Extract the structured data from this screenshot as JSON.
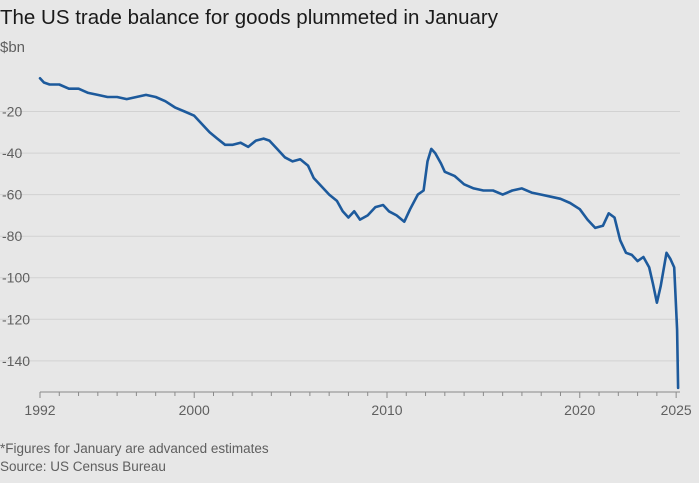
{
  "title": "The US trade balance for goods plummeted in January",
  "unit_label": "$bn",
  "footnote": "*Figures for January are advanced estimates",
  "source": "Source: US Census Bureau",
  "colors": {
    "line": "#1d5a9c",
    "background": "#e7e7e7",
    "grid": "#d2d2d2",
    "axis": "#8a8a8a"
  },
  "chart_data": {
    "type": "line",
    "title": "The US trade balance for goods plummeted in January",
    "ylabel": "$bn",
    "xlabel": "",
    "ylim": [
      -155,
      0
    ],
    "xlim": [
      1992,
      2025.2
    ],
    "y_ticks": [
      -20,
      -40,
      -60,
      -80,
      -100,
      -120,
      -140
    ],
    "x_ticks": [
      1992,
      2000,
      2010,
      2020,
      2025
    ],
    "x_minor_ticks": "yearly",
    "grid": true,
    "series": [
      {
        "values": [
          [
            1992.0,
            -4
          ],
          [
            1992.2,
            -6
          ],
          [
            1992.5,
            -7
          ],
          [
            1993.0,
            -7
          ],
          [
            1993.5,
            -9
          ],
          [
            1994.0,
            -9
          ],
          [
            1994.5,
            -11
          ],
          [
            1995.0,
            -12
          ],
          [
            1995.5,
            -13
          ],
          [
            1996.0,
            -13
          ],
          [
            1996.5,
            -14
          ],
          [
            1997.0,
            -13
          ],
          [
            1997.5,
            -12
          ],
          [
            1998.0,
            -13
          ],
          [
            1998.5,
            -15
          ],
          [
            1999.0,
            -18
          ],
          [
            1999.5,
            -20
          ],
          [
            2000.0,
            -22
          ],
          [
            2000.4,
            -26
          ],
          [
            2000.8,
            -30
          ],
          [
            2001.2,
            -33
          ],
          [
            2001.6,
            -36
          ],
          [
            2002.0,
            -36
          ],
          [
            2002.4,
            -35
          ],
          [
            2002.8,
            -37
          ],
          [
            2003.2,
            -34
          ],
          [
            2003.6,
            -33
          ],
          [
            2003.9,
            -34
          ],
          [
            2004.3,
            -38
          ],
          [
            2004.7,
            -42
          ],
          [
            2005.1,
            -44
          ],
          [
            2005.5,
            -43
          ],
          [
            2005.9,
            -46
          ],
          [
            2006.2,
            -52
          ],
          [
            2006.6,
            -56
          ],
          [
            2007.0,
            -60
          ],
          [
            2007.4,
            -63
          ],
          [
            2007.7,
            -68
          ],
          [
            2008.0,
            -71
          ],
          [
            2008.3,
            -68
          ],
          [
            2008.6,
            -72
          ],
          [
            2009.0,
            -70
          ],
          [
            2009.4,
            -66
          ],
          [
            2009.8,
            -65
          ],
          [
            2010.1,
            -68
          ],
          [
            2010.5,
            -70
          ],
          [
            2010.9,
            -73
          ],
          [
            2011.2,
            -67
          ],
          [
            2011.6,
            -60
          ],
          [
            2011.9,
            -58
          ],
          [
            2012.1,
            -44
          ],
          [
            2012.3,
            -38
          ],
          [
            2012.5,
            -40
          ],
          [
            2012.8,
            -45
          ],
          [
            2013.0,
            -49
          ],
          [
            2013.5,
            -51
          ],
          [
            2014.0,
            -55
          ],
          [
            2014.5,
            -57
          ],
          [
            2015.0,
            -58
          ],
          [
            2015.5,
            -58
          ],
          [
            2016.0,
            -60
          ],
          [
            2016.5,
            -58
          ],
          [
            2017.0,
            -57
          ],
          [
            2017.5,
            -59
          ],
          [
            2018.0,
            -60
          ],
          [
            2018.5,
            -61
          ],
          [
            2019.0,
            -62
          ],
          [
            2019.5,
            -64
          ],
          [
            2020.0,
            -67
          ],
          [
            2020.4,
            -72
          ],
          [
            2020.8,
            -76
          ],
          [
            2021.2,
            -75
          ],
          [
            2021.5,
            -69
          ],
          [
            2021.8,
            -71
          ],
          [
            2022.1,
            -82
          ],
          [
            2022.4,
            -88
          ],
          [
            2022.7,
            -89
          ],
          [
            2023.0,
            -92
          ],
          [
            2023.3,
            -90
          ],
          [
            2023.6,
            -95
          ],
          [
            2023.8,
            -103
          ],
          [
            2024.0,
            -112
          ],
          [
            2024.2,
            -104
          ],
          [
            2024.5,
            -88
          ],
          [
            2024.7,
            -91
          ],
          [
            2024.9,
            -95
          ],
          [
            2025.05,
            -125
          ],
          [
            2025.1,
            -153
          ]
        ]
      }
    ]
  }
}
